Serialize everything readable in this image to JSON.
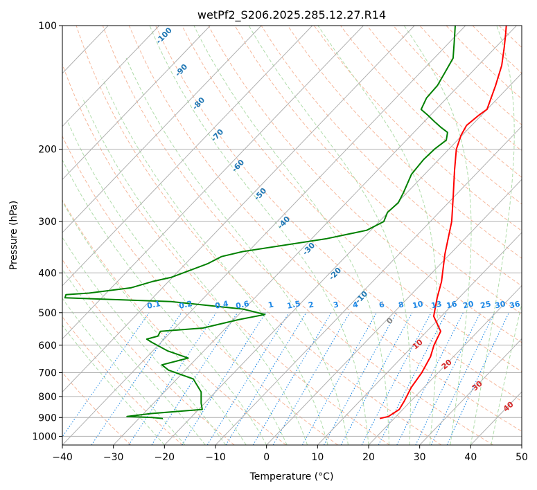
{
  "chart_data": {
    "type": "line",
    "subtype": "skew-t",
    "title": "wetPf2_S206.2025.285.12.27.R14",
    "xlabel": "Temperature (°C)",
    "ylabel": "Pressure (hPa)",
    "xlim": [
      -40,
      50
    ],
    "ylim": [
      1050,
      100
    ],
    "y_scale": "log",
    "grid": true,
    "x_ticks": [
      -40,
      -30,
      -20,
      -10,
      0,
      10,
      20,
      30,
      40,
      50
    ],
    "y_ticks": [
      100,
      200,
      300,
      400,
      500,
      600,
      700,
      800,
      900,
      1000
    ],
    "isotherm_labels": [
      "-100",
      "-90",
      "-80",
      "-70",
      "-60",
      "-50",
      "-40",
      "-30",
      "-20",
      "-10",
      "0"
    ],
    "moist_adiabat_labels": [
      "10",
      "20",
      "30",
      "40"
    ],
    "mixing_ratio_labels": [
      "0.1",
      "0.2",
      "0.4",
      "0.6",
      "1",
      "1.5",
      "2",
      "3",
      "4",
      "6",
      "8",
      "10",
      "13",
      "16",
      "20",
      "25",
      "30",
      "36"
    ],
    "colors": {
      "temperature": "#ff0000",
      "dewpoint": "#008000",
      "isotherm_label": "#1f77b4",
      "isotherm_zero_label": "#808080",
      "mixing_ratio": "#1e88e5",
      "moist_adiabat_label": "#d62728",
      "dry_adiabat": "#f4a582",
      "moist_adiabat": "#a6d8a0",
      "grid": "#b0b0b0"
    },
    "series": [
      {
        "key": "temperature",
        "points": [
          [
            17.2,
            905
          ],
          [
            18.5,
            895
          ],
          [
            19.3,
            860
          ],
          [
            18.7,
            820
          ],
          [
            17.5,
            760
          ],
          [
            16.8,
            700
          ],
          [
            15.5,
            640
          ],
          [
            14.0,
            600
          ],
          [
            12.7,
            555
          ],
          [
            8.5,
            510
          ],
          [
            5.7,
            460
          ],
          [
            3.5,
            420
          ],
          [
            -1.0,
            360
          ],
          [
            -5.8,
            300
          ],
          [
            -10.3,
            260
          ],
          [
            -14.9,
            225
          ],
          [
            -18.5,
            200
          ],
          [
            -20.2,
            185
          ],
          [
            -21.0,
            175
          ],
          [
            -20.5,
            165
          ],
          [
            -20.0,
            160
          ],
          [
            -22.8,
            140
          ],
          [
            -25.4,
            125
          ],
          [
            -28.3,
            113
          ],
          [
            -30.5,
            105
          ],
          [
            -32.0,
            100
          ]
        ]
      },
      {
        "key": "dewpoint",
        "points": [
          [
            -25.3,
            905
          ],
          [
            -27.5,
            900
          ],
          [
            -32.7,
            895
          ],
          [
            -28.5,
            880
          ],
          [
            -19.3,
            860
          ],
          [
            -20.7,
            830
          ],
          [
            -22.8,
            780
          ],
          [
            -26.8,
            725
          ],
          [
            -33.3,
            690
          ],
          [
            -35.6,
            670
          ],
          [
            -31.7,
            645
          ],
          [
            -37.0,
            620
          ],
          [
            -41.9,
            590
          ],
          [
            -43.4,
            580
          ],
          [
            -41.8,
            570
          ],
          [
            -42.2,
            555
          ],
          [
            -34.5,
            545
          ],
          [
            -29.1,
            520
          ],
          [
            -24.9,
            505
          ],
          [
            -30.2,
            490
          ],
          [
            -45.7,
            470
          ],
          [
            -67.2,
            460
          ],
          [
            -67.6,
            452
          ],
          [
            -63.4,
            448
          ],
          [
            -56.2,
            435
          ],
          [
            -53.2,
            420
          ],
          [
            -50.2,
            410
          ],
          [
            -45.7,
            380
          ],
          [
            -44.3,
            365
          ],
          [
            -41.1,
            355
          ],
          [
            -27.0,
            330
          ],
          [
            -20.8,
            315
          ],
          [
            -19.1,
            300
          ],
          [
            -20.1,
            285
          ],
          [
            -19.8,
            270
          ],
          [
            -20.7,
            255
          ],
          [
            -22.6,
            230
          ],
          [
            -23.0,
            212
          ],
          [
            -22.8,
            200
          ],
          [
            -22.2,
            190
          ],
          [
            -23.4,
            182
          ],
          [
            -25.6,
            177
          ],
          [
            -27.7,
            172
          ],
          [
            -30.6,
            165
          ],
          [
            -32.9,
            160
          ],
          [
            -34.0,
            150
          ],
          [
            -34.2,
            140
          ],
          [
            -35.2,
            130
          ],
          [
            -36.3,
            120
          ],
          [
            -39.0,
            110
          ],
          [
            -42.0,
            100
          ]
        ]
      }
    ]
  }
}
